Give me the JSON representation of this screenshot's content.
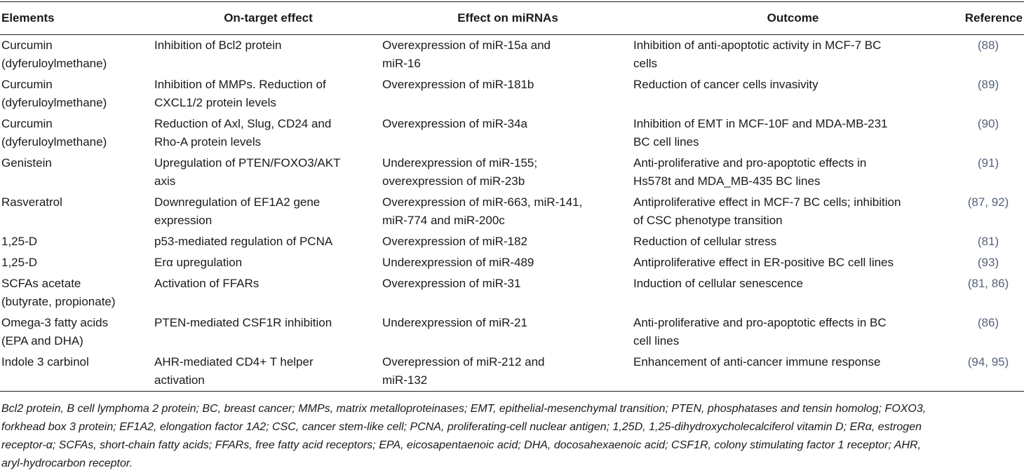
{
  "table": {
    "header": [
      "Elements",
      "On-target effect",
      "Effect on miRNAs",
      "Outcome",
      "Reference"
    ],
    "rows": [
      [
        [
          "Curcumin",
          "(dyferuloylmethane)"
        ],
        [
          "Inhibition of Bcl2 protein"
        ],
        [
          "Overexpression of miR-15a and",
          "miR-16"
        ],
        [
          "Inhibition of anti-apoptotic activity in MCF-7 BC",
          "cells"
        ],
        [
          "(88)"
        ]
      ],
      [
        [
          "Curcumin",
          "(dyferuloylmethane)"
        ],
        [
          "Inhibition of MMPs. Reduction of",
          "CXCL1/2 protein levels"
        ],
        [
          "Overexpression of miR-181b"
        ],
        [
          "Reduction of cancer cells invasivity"
        ],
        [
          "(89)"
        ]
      ],
      [
        [
          "Curcumin",
          "(dyferuloylmethane)"
        ],
        [
          "Reduction of Axl, Slug, CD24 and",
          "Rho-A protein levels"
        ],
        [
          "Overexpression of miR-34a"
        ],
        [
          "Inhibition of EMT in MCF-10F and MDA-MB-231",
          "BC cell lines"
        ],
        [
          "(90)"
        ]
      ],
      [
        [
          "Genistein"
        ],
        [
          "Upregulation of PTEN/FOXO3/AKT",
          "axis"
        ],
        [
          "Underexpression of miR-155;",
          "overexpression of miR-23b"
        ],
        [
          "Anti-proliferative and pro-apoptotic effects in",
          "Hs578t and MDA_MB-435 BC lines"
        ],
        [
          "(91)"
        ]
      ],
      [
        [
          "Rasveratrol"
        ],
        [
          "Downregulation of EF1A2 gene",
          "expression"
        ],
        [
          "Overexpression of miR-663, miR-141,",
          "miR-774 and miR-200c"
        ],
        [
          "Antiproliferative effect in MCF-7 BC cells; inhibition",
          "of CSC phenotype transition"
        ],
        [
          "(87, 92)"
        ]
      ],
      [
        [
          "1,25-D"
        ],
        [
          "p53-mediated regulation of PCNA"
        ],
        [
          "Overexpression of miR-182"
        ],
        [
          "Reduction of cellular stress"
        ],
        [
          "(81)"
        ]
      ],
      [
        [
          "1,25-D"
        ],
        [
          "Erα upregulation"
        ],
        [
          "Underexpression of miR-489"
        ],
        [
          "Antiproliferative effect in ER-positive BC cell lines"
        ],
        [
          "(93)"
        ]
      ],
      [
        [
          "SCFAs acetate",
          "(butyrate, propionate)"
        ],
        [
          "Activation of FFARs"
        ],
        [
          "Overexpression of miR-31"
        ],
        [
          "Induction of cellular senescence"
        ],
        [
          "(81, 86)"
        ]
      ],
      [
        [
          "Omega-3 fatty acids",
          "(EPA and DHA)"
        ],
        [
          "PTEN-mediated CSF1R inhibition"
        ],
        [
          "Underexpression of miR-21"
        ],
        [
          "Anti-proliferative and pro-apoptotic effects in BC",
          "cell lines"
        ],
        [
          "(86)"
        ]
      ],
      [
        [
          "Indole 3 carbinol"
        ],
        [
          "AHR-mediated CD4+ T helper",
          "activation"
        ],
        [
          "Overepression of miR-212 and",
          "miR-132"
        ],
        [
          "Enhancement of anti-cancer immune response"
        ],
        [
          "(94, 95)"
        ]
      ]
    ],
    "footnote": [
      "Bcl2 protein, B cell lymphoma 2 protein; BC, breast cancer; MMPs, matrix metalloproteinases; EMT, epithelial-mesenchymal transition; PTEN, phosphatases and tensin homolog; FOXO3,",
      "forkhead box 3 protein; EF1A2, elongation factor 1A2; CSC, cancer stem-like cell; PCNA, proliferating-cell nuclear antigen; 1,25D, 1,25-dihydroxycholecalciferol vitamin D; ERα, estrogen",
      "receptor-α; SCFAs, short-chain fatty acids; FFARs, free fatty acid receptors; EPA, eicosapentaenoic acid; DHA, docosahexaenoic acid; CSF1R, colony stimulating factor 1 receptor; AHR,",
      "aryl-hydrocarbon receptor."
    ]
  }
}
